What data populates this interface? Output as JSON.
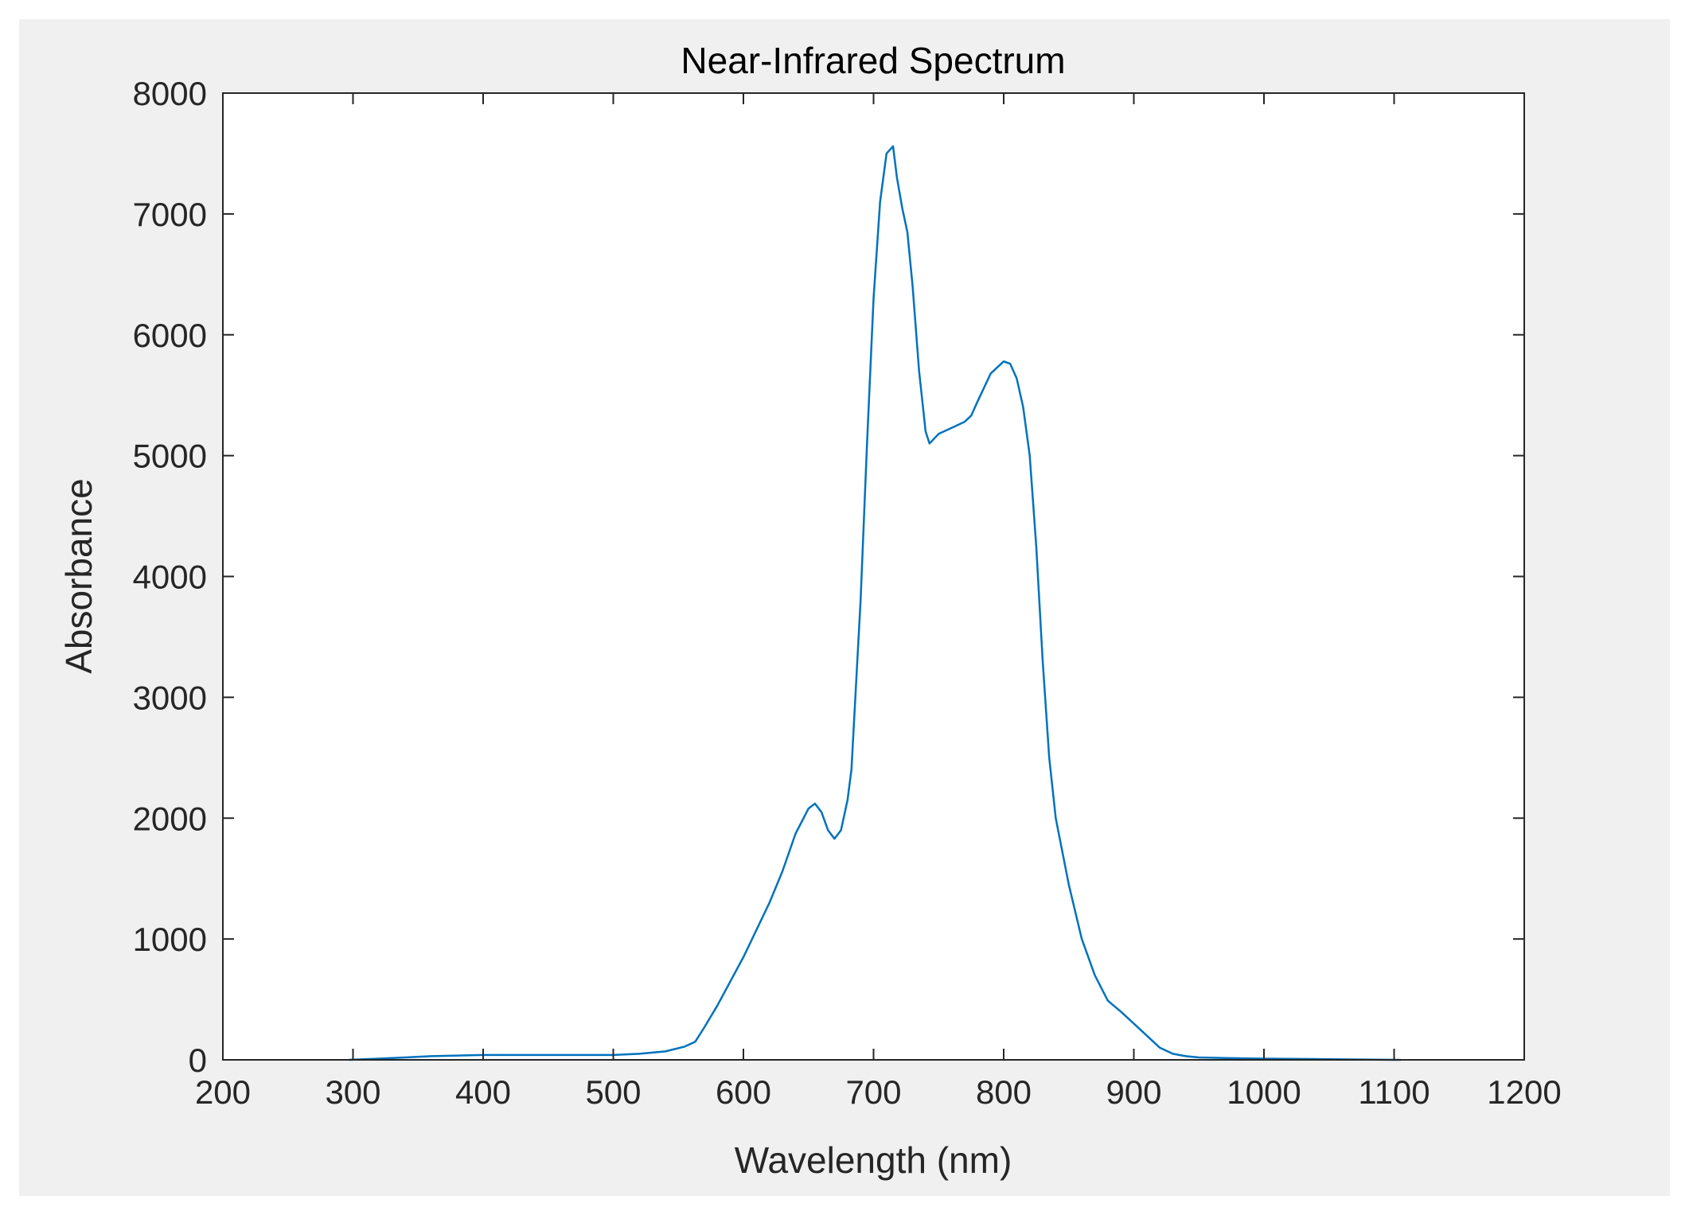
{
  "colors": {
    "figure_background": "#f0f0f0",
    "axes_background": "#ffffff",
    "axes_edge": "#262626",
    "line": "#0072bd"
  },
  "chart_data": {
    "type": "line",
    "title": "Near-Infrared Spectrum",
    "xlabel": "Wavelength (nm)",
    "ylabel": "Absorbance",
    "xlim": [
      200,
      1200
    ],
    "ylim": [
      0,
      8000
    ],
    "xticks": [
      200,
      300,
      400,
      500,
      600,
      700,
      800,
      900,
      1000,
      1100,
      1200
    ],
    "yticks": [
      0,
      1000,
      2000,
      3000,
      4000,
      5000,
      6000,
      7000,
      8000
    ],
    "grid": false,
    "legend": "none",
    "series": [
      {
        "x": [
          297,
          320,
          340,
          360,
          400,
          450,
          500,
          520,
          540,
          555,
          563,
          570,
          580,
          600,
          620,
          630,
          640,
          650,
          655,
          660,
          665,
          670,
          675,
          680,
          683,
          690,
          695,
          700,
          705,
          710,
          715,
          718,
          722,
          726,
          730,
          735,
          740,
          743,
          750,
          760,
          770,
          775,
          780,
          790,
          800,
          805,
          810,
          815,
          820,
          825,
          830,
          835,
          840,
          850,
          860,
          870,
          880,
          890,
          900,
          910,
          920,
          930,
          940,
          950,
          970,
          1000,
          1050,
          1100,
          1105
        ],
        "y": [
          0,
          10,
          20,
          30,
          40,
          40,
          40,
          50,
          70,
          110,
          150,
          270,
          450,
          850,
          1300,
          1560,
          1870,
          2080,
          2120,
          2050,
          1900,
          1830,
          1900,
          2150,
          2400,
          3800,
          5100,
          6300,
          7100,
          7500,
          7560,
          7300,
          7050,
          6850,
          6400,
          5700,
          5200,
          5100,
          5180,
          5230,
          5280,
          5330,
          5450,
          5680,
          5780,
          5760,
          5640,
          5400,
          5000,
          4250,
          3300,
          2500,
          2000,
          1450,
          1000,
          700,
          490,
          400,
          300,
          200,
          100,
          50,
          30,
          20,
          15,
          10,
          5,
          0,
          0
        ]
      }
    ]
  }
}
